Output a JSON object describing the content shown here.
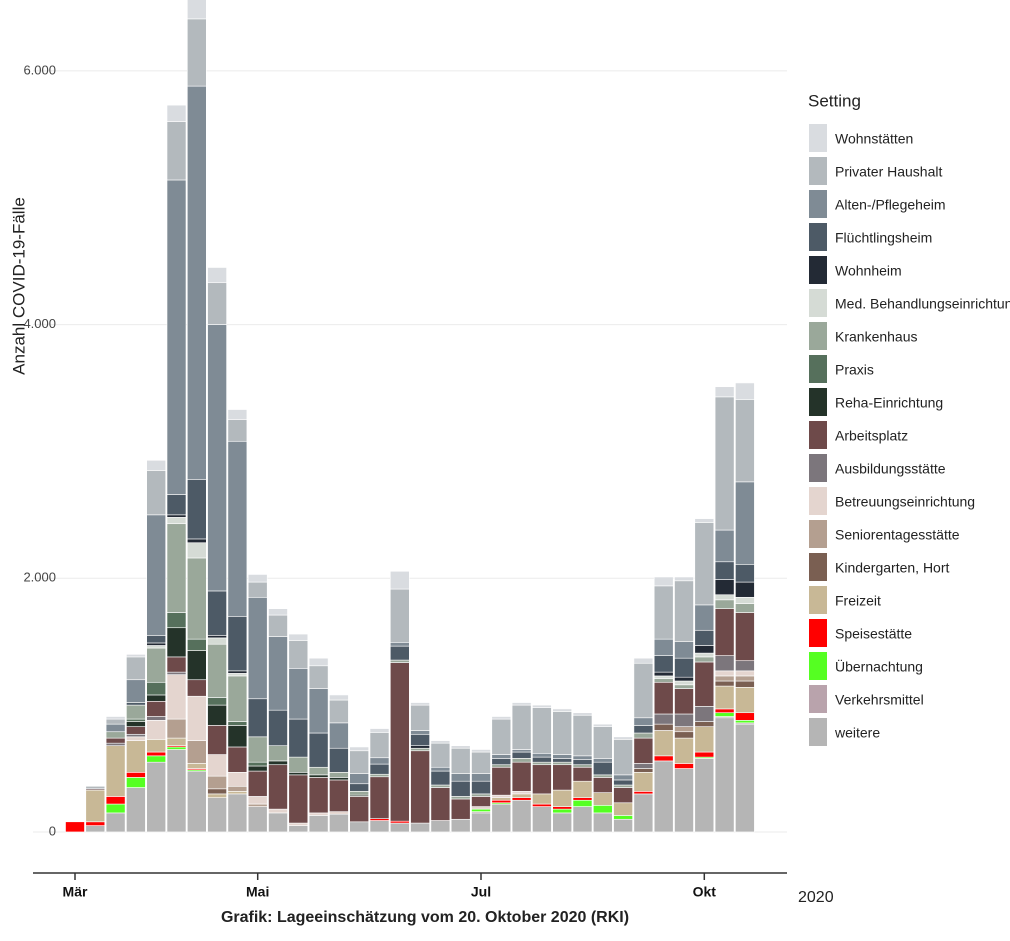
{
  "chart_data": {
    "type": "stacked_bar",
    "y_label": "Anzahl COVID-19-Fälle",
    "legend_title": "Setting",
    "year_label": "2020",
    "caption": "Grafik: Lageeinschätzung vom 20. Oktober 2020 (RKI)",
    "ylim": [
      -300,
      6480
    ],
    "yticks": [
      0,
      {
        "value": 2000,
        "label": "2.000"
      },
      {
        "value": 4000,
        "label": "4.000"
      },
      {
        "value": 6000,
        "label": "6.000"
      }
    ],
    "grid": true,
    "legend_position": "right",
    "categories": [
      "Mär",
      null,
      null,
      null,
      null,
      null,
      null,
      null,
      null,
      "Mai",
      null,
      null,
      null,
      null,
      null,
      null,
      null,
      null,
      null,
      null,
      "Jul",
      null,
      null,
      null,
      null,
      null,
      null,
      null,
      null,
      null,
      null,
      "Okt",
      null,
      null
    ],
    "series": [
      {
        "name": "Wohnstätten",
        "color": "#d9dce0",
        "values": [
          0,
          0,
          20,
          20,
          80,
          130,
          180,
          120,
          80,
          60,
          50,
          50,
          60,
          40,
          30,
          30,
          140,
          20,
          20,
          20,
          20,
          20,
          20,
          20,
          20,
          20,
          20,
          20,
          40,
          70,
          30,
          30,
          80,
          130
        ]
      },
      {
        "name": "Privater Haushalt",
        "color": "#b3b9bd",
        "values": [
          0,
          20,
          40,
          180,
          350,
          460,
          530,
          330,
          170,
          120,
          170,
          220,
          180,
          180,
          180,
          200,
          420,
          200,
          190,
          200,
          170,
          280,
          350,
          360,
          340,
          320,
          250,
          280,
          430,
          420,
          480,
          650,
          1050,
          650
        ]
      },
      {
        "name": "Alten-/Pflegeheim",
        "color": "#7f8b95",
        "values": [
          0,
          0,
          60,
          180,
          950,
          2480,
          3100,
          2100,
          1380,
          800,
          580,
          400,
          350,
          200,
          80,
          50,
          30,
          30,
          30,
          60,
          60,
          30,
          20,
          30,
          30,
          30,
          30,
          40,
          60,
          130,
          130,
          200,
          250,
          650
        ]
      },
      {
        "name": "Flüchtlingsheim",
        "color": "#4d5a66",
        "values": [
          0,
          0,
          0,
          20,
          60,
          160,
          470,
          350,
          430,
          300,
          280,
          300,
          270,
          190,
          60,
          80,
          110,
          90,
          110,
          120,
          100,
          50,
          50,
          40,
          30,
          40,
          100,
          40,
          60,
          130,
          150,
          120,
          140,
          140
        ]
      },
      {
        "name": "Wohnheim",
        "color": "#232a35",
        "values": [
          0,
          0,
          0,
          0,
          20,
          20,
          30,
          20,
          20,
          0,
          0,
          0,
          0,
          0,
          0,
          0,
          0,
          20,
          0,
          0,
          0,
          0,
          0,
          0,
          0,
          0,
          0,
          0,
          0,
          30,
          30,
          60,
          120,
          120
        ]
      },
      {
        "name": "Med. Behandlungseinrichtung",
        "color": "#d5dbd5",
        "values": [
          0,
          0,
          0,
          0,
          20,
          50,
          120,
          50,
          20,
          0,
          0,
          0,
          0,
          0,
          0,
          0,
          0,
          0,
          0,
          0,
          0,
          0,
          0,
          0,
          0,
          0,
          0,
          0,
          0,
          20,
          30,
          30,
          40,
          50
        ]
      },
      {
        "name": "Krankenhaus",
        "color": "#9aa89a",
        "values": [
          0,
          0,
          50,
          110,
          270,
          700,
          640,
          420,
          360,
          200,
          120,
          120,
          60,
          40,
          30,
          20,
          20,
          20,
          20,
          20,
          20,
          20,
          30,
          20,
          20,
          20,
          20,
          20,
          40,
          30,
          30,
          40,
          70,
          70
        ]
      },
      {
        "name": "Praxis",
        "color": "#56705c",
        "values": [
          0,
          0,
          0,
          20,
          100,
          120,
          90,
          60,
          30,
          30,
          0,
          0,
          0,
          0,
          0,
          0,
          0,
          0,
          0,
          0,
          0,
          0,
          0,
          0,
          0,
          0,
          0,
          0,
          0,
          0,
          0,
          0,
          0,
          0
        ]
      },
      {
        "name": "Reha-Einrichtung",
        "color": "#243329",
        "values": [
          0,
          0,
          0,
          40,
          50,
          230,
          230,
          160,
          170,
          40,
          30,
          20,
          20,
          20,
          10,
          0,
          0,
          0,
          0,
          0,
          0,
          0,
          0,
          0,
          0,
          0,
          0,
          0,
          0,
          0,
          0,
          0,
          0,
          0
        ]
      },
      {
        "name": "Arbeitsplatz",
        "color": "#6e4a4a",
        "values": [
          0,
          10,
          40,
          60,
          120,
          120,
          130,
          230,
          200,
          200,
          350,
          380,
          280,
          250,
          200,
          330,
          1250,
          570,
          260,
          160,
          80,
          220,
          230,
          230,
          200,
          110,
          120,
          120,
          200,
          250,
          200,
          350,
          370,
          380
        ]
      },
      {
        "name": "Ausbildungsstätte",
        "color": "#7c767c",
        "values": [
          0,
          0,
          20,
          20,
          30,
          20,
          0,
          0,
          0,
          0,
          0,
          0,
          0,
          0,
          0,
          0,
          0,
          0,
          0,
          0,
          0,
          0,
          0,
          0,
          0,
          0,
          0,
          0,
          40,
          80,
          100,
          120,
          120,
          80
        ]
      },
      {
        "name": "Betreuungseinrichtung",
        "color": "#e4d5cf",
        "values": [
          0,
          0,
          0,
          30,
          150,
          350,
          350,
          170,
          110,
          60,
          30,
          20,
          20,
          20,
          0,
          0,
          0,
          0,
          0,
          0,
          20,
          20,
          20,
          0,
          0,
          0,
          0,
          0,
          0,
          0,
          0,
          0,
          40,
          40
        ]
      },
      {
        "name": "Seniorentagesstätte",
        "color": "#b49f90",
        "values": [
          0,
          0,
          0,
          0,
          0,
          150,
          180,
          100,
          40,
          20,
          0,
          0,
          0,
          0,
          0,
          0,
          0,
          0,
          0,
          0,
          0,
          0,
          0,
          0,
          0,
          0,
          0,
          0,
          0,
          0,
          40,
          0,
          40,
          40
        ]
      },
      {
        "name": "Kindergarten, Hort",
        "color": "#7a5f52",
        "values": [
          0,
          0,
          0,
          0,
          0,
          0,
          0,
          40,
          0,
          0,
          0,
          0,
          0,
          0,
          0,
          0,
          0,
          0,
          0,
          0,
          0,
          0,
          0,
          0,
          0,
          0,
          0,
          0,
          30,
          50,
          50,
          40,
          40,
          50
        ]
      },
      {
        "name": "Freizeit",
        "color": "#c8b896",
        "values": [
          0,
          250,
          400,
          250,
          100,
          60,
          40,
          30,
          20,
          0,
          0,
          0,
          0,
          0,
          0,
          0,
          0,
          0,
          0,
          0,
          0,
          20,
          30,
          80,
          130,
          130,
          100,
          100,
          150,
          200,
          200,
          200,
          180,
          200
        ]
      },
      {
        "name": "Speisestätte",
        "color": "#ff0000",
        "values": [
          80,
          30,
          60,
          40,
          30,
          10,
          10,
          0,
          0,
          0,
          0,
          0,
          0,
          0,
          0,
          15,
          15,
          0,
          0,
          0,
          0,
          20,
          20,
          20,
          20,
          20,
          0,
          0,
          20,
          40,
          40,
          40,
          30,
          60
        ]
      },
      {
        "name": "Übernachtung",
        "color": "#55ff22",
        "values": [
          0,
          0,
          70,
          80,
          50,
          20,
          10,
          0,
          0,
          0,
          0,
          0,
          0,
          0,
          0,
          0,
          0,
          0,
          0,
          0,
          20,
          10,
          0,
          0,
          30,
          50,
          60,
          30,
          0,
          0,
          0,
          10,
          30,
          20
        ]
      },
      {
        "name": "Verkehrsmittel",
        "color": "#b9a3ac",
        "values": [
          0,
          0,
          0,
          0,
          0,
          0,
          0,
          0,
          0,
          0,
          0,
          0,
          0,
          0,
          0,
          0,
          0,
          0,
          0,
          0,
          10,
          0,
          0,
          0,
          0,
          0,
          0,
          0,
          0,
          0,
          0,
          0,
          10,
          10
        ]
      },
      {
        "name": "weitere",
        "color": "#b5b5b5",
        "values": [
          0,
          50,
          150,
          350,
          550,
          650,
          480,
          270,
          300,
          200,
          150,
          50,
          130,
          140,
          80,
          90,
          70,
          70,
          90,
          100,
          150,
          220,
          250,
          200,
          150,
          200,
          150,
          100,
          300,
          560,
          500,
          580,
          900,
          850
        ]
      }
    ]
  }
}
